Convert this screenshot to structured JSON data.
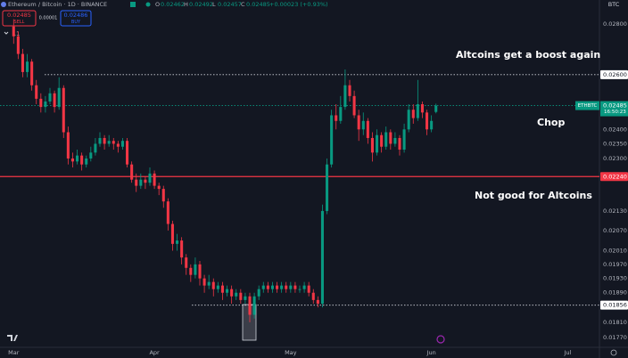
{
  "header": {
    "title": "Ethereum / Bitcoin · 1D · BINANCE",
    "ohlc": [
      {
        "key": "O",
        "value": "0.02462"
      },
      {
        "key": "H",
        "value": "0.02492"
      },
      {
        "key": "L",
        "value": "0.02457"
      },
      {
        "key": "C",
        "value": "0.02485"
      }
    ],
    "change": "+0.00023 (+0.93%)",
    "sell": {
      "price": "0.02485",
      "label": "SELL"
    },
    "spread": "0.00001",
    "buy": {
      "price": "0.02486",
      "label": "BUY"
    },
    "indicators": "11",
    "currency": "BTC"
  },
  "chart_data": {
    "type": "candlestick",
    "up_color": "#089981",
    "down_color": "#f23645",
    "log_scale": true,
    "grid": false,
    "ylim": [
      0.01745,
      0.029
    ],
    "yticks": [
      {
        "value": 0.028,
        "label": "0.02800"
      },
      {
        "value": 0.024,
        "label": "0.02400"
      },
      {
        "value": 0.0235,
        "label": "0.02350"
      },
      {
        "value": 0.023,
        "label": "0.02300"
      },
      {
        "value": 0.0213,
        "label": "0.02130"
      },
      {
        "value": 0.0207,
        "label": "0.02070"
      },
      {
        "value": 0.0201,
        "label": "0.02010"
      },
      {
        "value": 0.0197,
        "label": "0.01970"
      },
      {
        "value": 0.0193,
        "label": "0.01930"
      },
      {
        "value": 0.0189,
        "label": "0.01890"
      },
      {
        "value": 0.0181,
        "label": "0.01810"
      },
      {
        "value": 0.0177,
        "label": "0.01770"
      }
    ],
    "xlim": [
      -3,
      129
    ],
    "xticks": [
      {
        "value": 0,
        "label": "Mar"
      },
      {
        "value": 31,
        "label": "Apr"
      },
      {
        "value": 61,
        "label": "May"
      },
      {
        "value": 92,
        "label": "Jun"
      },
      {
        "value": 122,
        "label": "Jul"
      }
    ],
    "candles": [
      [
        0.0279,
        0.0282,
        0.0272,
        0.0275
      ],
      [
        0.0275,
        0.0277,
        0.0266,
        0.0268
      ],
      [
        0.0268,
        0.027,
        0.0259,
        0.0261
      ],
      [
        0.0261,
        0.0268,
        0.0259,
        0.0265
      ],
      [
        0.0265,
        0.0266,
        0.0254,
        0.0256
      ],
      [
        0.0256,
        0.0258,
        0.0249,
        0.0251
      ],
      [
        0.0251,
        0.0253,
        0.0246,
        0.0248
      ],
      [
        0.0248,
        0.0252,
        0.0246,
        0.025
      ],
      [
        0.025,
        0.0255,
        0.0249,
        0.0253
      ],
      [
        0.0253,
        0.0254,
        0.0246,
        0.0248
      ],
      [
        0.0248,
        0.0259,
        0.0247,
        0.0255
      ],
      [
        0.0255,
        0.0256,
        0.0237,
        0.0239
      ],
      [
        0.0239,
        0.0241,
        0.0228,
        0.023
      ],
      [
        0.023,
        0.0232,
        0.0227,
        0.0229
      ],
      [
        0.0229,
        0.0233,
        0.0228,
        0.0231
      ],
      [
        0.0231,
        0.0232,
        0.0226,
        0.0228
      ],
      [
        0.0228,
        0.0231,
        0.0227,
        0.023
      ],
      [
        0.023,
        0.0234,
        0.0229,
        0.0232
      ],
      [
        0.0232,
        0.0237,
        0.0231,
        0.0235
      ],
      [
        0.0235,
        0.0239,
        0.0234,
        0.0237
      ],
      [
        0.0237,
        0.0238,
        0.0233,
        0.0235
      ],
      [
        0.0235,
        0.0238,
        0.0234,
        0.0236
      ],
      [
        0.0236,
        0.0237,
        0.0233,
        0.0235
      ],
      [
        0.0235,
        0.0236,
        0.0232,
        0.0234
      ],
      [
        0.0234,
        0.0237,
        0.0233,
        0.0236
      ],
      [
        0.0236,
        0.0237,
        0.0227,
        0.0228
      ],
      [
        0.0228,
        0.0229,
        0.0222,
        0.0223
      ],
      [
        0.0223,
        0.0225,
        0.0219,
        0.0221
      ],
      [
        0.0221,
        0.0225,
        0.022,
        0.0223
      ],
      [
        0.0223,
        0.0224,
        0.022,
        0.0222
      ],
      [
        0.0222,
        0.0227,
        0.0221,
        0.0225
      ],
      [
        0.0225,
        0.0226,
        0.022,
        0.0221
      ],
      [
        0.0221,
        0.0222,
        0.0218,
        0.022
      ],
      [
        0.022,
        0.0221,
        0.0214,
        0.0216
      ],
      [
        0.0216,
        0.0217,
        0.0207,
        0.0209
      ],
      [
        0.0209,
        0.021,
        0.0201,
        0.0203
      ],
      [
        0.0203,
        0.0206,
        0.0201,
        0.0204
      ],
      [
        0.0204,
        0.0205,
        0.0197,
        0.0199
      ],
      [
        0.0199,
        0.02,
        0.0194,
        0.0196
      ],
      [
        0.0196,
        0.0197,
        0.0192,
        0.0194
      ],
      [
        0.0194,
        0.0199,
        0.0193,
        0.0197
      ],
      [
        0.0197,
        0.0198,
        0.0191,
        0.0193
      ],
      [
        0.0193,
        0.0194,
        0.0189,
        0.0191
      ],
      [
        0.0191,
        0.0194,
        0.019,
        0.0192
      ],
      [
        0.0192,
        0.0193,
        0.0188,
        0.019
      ],
      [
        0.019,
        0.0192,
        0.0189,
        0.0191
      ],
      [
        0.0191,
        0.0192,
        0.0187,
        0.0189
      ],
      [
        0.0189,
        0.0191,
        0.0188,
        0.019
      ],
      [
        0.019,
        0.0191,
        0.0186,
        0.0188
      ],
      [
        0.0188,
        0.019,
        0.0187,
        0.0189
      ],
      [
        0.0189,
        0.019,
        0.0186,
        0.0187
      ],
      [
        0.0187,
        0.0189,
        0.0186,
        0.0188
      ],
      [
        0.0188,
        0.0189,
        0.0181,
        0.0183
      ],
      [
        0.0183,
        0.0189,
        0.0182,
        0.0188
      ],
      [
        0.0188,
        0.0191,
        0.0187,
        0.019
      ],
      [
        0.019,
        0.0192,
        0.0189,
        0.0191
      ],
      [
        0.0191,
        0.0192,
        0.0189,
        0.019
      ],
      [
        0.019,
        0.0192,
        0.0189,
        0.0191
      ],
      [
        0.0191,
        0.0192,
        0.0189,
        0.019
      ],
      [
        0.019,
        0.0192,
        0.0189,
        0.0191
      ],
      [
        0.0191,
        0.0192,
        0.0189,
        0.019
      ],
      [
        0.019,
        0.0192,
        0.0189,
        0.0191
      ],
      [
        0.0191,
        0.0192,
        0.0189,
        0.019
      ],
      [
        0.019,
        0.0191,
        0.0189,
        0.019
      ],
      [
        0.019,
        0.0192,
        0.0189,
        0.0191
      ],
      [
        0.0191,
        0.0192,
        0.0188,
        0.0189
      ],
      [
        0.0189,
        0.019,
        0.0186,
        0.0187
      ],
      [
        0.0187,
        0.0188,
        0.0185,
        0.0186
      ],
      [
        0.0186,
        0.0215,
        0.0185,
        0.0213
      ],
      [
        0.0213,
        0.023,
        0.0212,
        0.0228
      ],
      [
        0.0228,
        0.0247,
        0.0227,
        0.0245
      ],
      [
        0.0245,
        0.0249,
        0.024,
        0.0243
      ],
      [
        0.0243,
        0.0252,
        0.0242,
        0.0248
      ],
      [
        0.0248,
        0.0262,
        0.0247,
        0.0256
      ],
      [
        0.0256,
        0.0258,
        0.025,
        0.0252
      ],
      [
        0.0252,
        0.0254,
        0.0244,
        0.0245
      ],
      [
        0.0245,
        0.0247,
        0.0236,
        0.024
      ],
      [
        0.024,
        0.0246,
        0.0238,
        0.0243
      ],
      [
        0.0243,
        0.0244,
        0.0235,
        0.0237
      ],
      [
        0.0237,
        0.0239,
        0.0229,
        0.0232
      ],
      [
        0.0232,
        0.024,
        0.0231,
        0.0238
      ],
      [
        0.0238,
        0.0239,
        0.0232,
        0.0234
      ],
      [
        0.0234,
        0.0241,
        0.0233,
        0.0239
      ],
      [
        0.0239,
        0.024,
        0.0233,
        0.0235
      ],
      [
        0.0235,
        0.0239,
        0.0234,
        0.0237
      ],
      [
        0.0237,
        0.0238,
        0.0231,
        0.0233
      ],
      [
        0.0233,
        0.0242,
        0.0232,
        0.024
      ],
      [
        0.024,
        0.0249,
        0.0239,
        0.0247
      ],
      [
        0.0247,
        0.0249,
        0.0242,
        0.0244
      ],
      [
        0.0244,
        0.0258,
        0.0243,
        0.0249
      ],
      [
        0.0249,
        0.025,
        0.0244,
        0.0246
      ],
      [
        0.0246,
        0.0247,
        0.0238,
        0.024
      ],
      [
        0.024,
        0.0245,
        0.0239,
        0.0243
      ],
      [
        0.02462,
        0.02492,
        0.02457,
        0.02485
      ]
    ],
    "levels": [
      {
        "value": 0.026,
        "label": "0.02600",
        "color": "#d1d4dc",
        "style": "dotted"
      },
      {
        "value": 0.0224,
        "label": "0.02240",
        "color": "#f23645",
        "style": "solid"
      },
      {
        "value": 0.01856,
        "label": "0.01856",
        "color": "#d1d4dc",
        "style": "dotted"
      }
    ],
    "last": {
      "value": 0.02485,
      "label": "0.02485",
      "symbol": "ETHBTC",
      "countdown": "16:50:23",
      "color": "#089981"
    },
    "annotations": [
      "Altcoins get a boost again",
      "Chop",
      "Not good for Altcoins"
    ]
  }
}
